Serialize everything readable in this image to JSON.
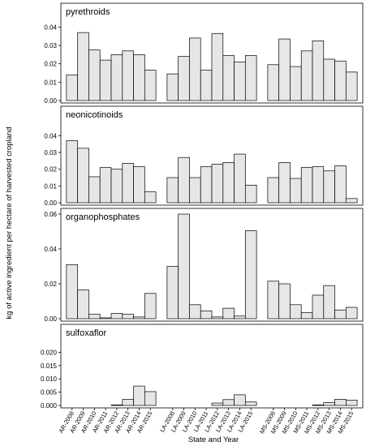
{
  "chart_data": {
    "type": "bar",
    "xlabel": "State and Year",
    "ylabel": "kg of active ingredient per hectare of harvested cropland",
    "categories": [
      "AR-2008",
      "AR-2009",
      "AR-2010",
      "AR-2011",
      "AR-2012",
      "AR-2013",
      "AR-2014",
      "AR-2015",
      "LA-2008",
      "LA-2009",
      "LA-2010",
      "LA-2011",
      "LA-2012",
      "LA-2013",
      "LA-2014",
      "LA-2015",
      "MS-2008",
      "MS-2009",
      "MS-2010",
      "MS-2011",
      "MS-2012",
      "MS-2013",
      "MS-2014",
      "MS-2015"
    ],
    "groups": [
      8,
      8,
      8
    ],
    "bar_color": "#e6e6e6",
    "panels": [
      {
        "title": "pyrethroids",
        "ylim": [
          0,
          0.045
        ],
        "yticks": [
          0.0,
          0.01,
          0.02,
          0.03,
          0.04
        ],
        "tick_labels": [
          "0.00",
          "0.01",
          "0.02",
          "0.03",
          "0.04"
        ],
        "values": [
          0.014,
          0.037,
          0.0275,
          0.022,
          0.025,
          0.027,
          0.025,
          0.0165,
          0.0145,
          0.024,
          0.034,
          0.0165,
          0.0365,
          0.0245,
          0.021,
          0.0245,
          0.0195,
          0.0335,
          0.0185,
          0.027,
          0.0325,
          0.0225,
          0.0215,
          0.0155
        ]
      },
      {
        "title": "neonicotinoids",
        "ylim": [
          0,
          0.045
        ],
        "yticks": [
          0.0,
          0.01,
          0.02,
          0.03,
          0.04
        ],
        "tick_labels": [
          "0.00",
          "0.01",
          "0.02",
          "0.03",
          "0.04"
        ],
        "values": [
          0.037,
          0.0325,
          0.0155,
          0.021,
          0.02,
          0.0235,
          0.0215,
          0.0065,
          0.015,
          0.027,
          0.015,
          0.0215,
          0.023,
          0.024,
          0.029,
          0.0105,
          0.015,
          0.024,
          0.0145,
          0.021,
          0.0215,
          0.019,
          0.022,
          0.0025
        ]
      },
      {
        "title": "organophosphates",
        "ylim": [
          0,
          0.06
        ],
        "yticks": [
          0.0,
          0.02,
          0.04,
          0.06
        ],
        "tick_labels": [
          "0.00",
          "0.02",
          "0.04",
          "0.06"
        ],
        "values": [
          0.031,
          0.0165,
          0.0025,
          0.0005,
          0.003,
          0.0025,
          0.001,
          0.0145,
          0.03,
          0.06,
          0.008,
          0.0045,
          0.001,
          0.006,
          0.0015,
          0.0505,
          0.0215,
          0.02,
          0.008,
          0.0035,
          0.0135,
          0.019,
          0.005,
          0.0065
        ]
      },
      {
        "title": "sulfoxaflor",
        "ylim": [
          0,
          0.025
        ],
        "yticks": [
          0.0,
          0.005,
          0.01,
          0.015,
          0.02
        ],
        "tick_labels": [
          "0.000",
          "0.005",
          "0.010",
          "0.015",
          "0.020"
        ],
        "values": [
          0,
          0,
          0,
          0,
          0.0002,
          0.0023,
          0.0073,
          0.0052,
          0,
          0,
          0,
          0,
          0.0009,
          0.0022,
          0.004,
          0.0013,
          0,
          0,
          0,
          0,
          0.0002,
          0.0011,
          0.0023,
          0.002
        ]
      }
    ]
  }
}
